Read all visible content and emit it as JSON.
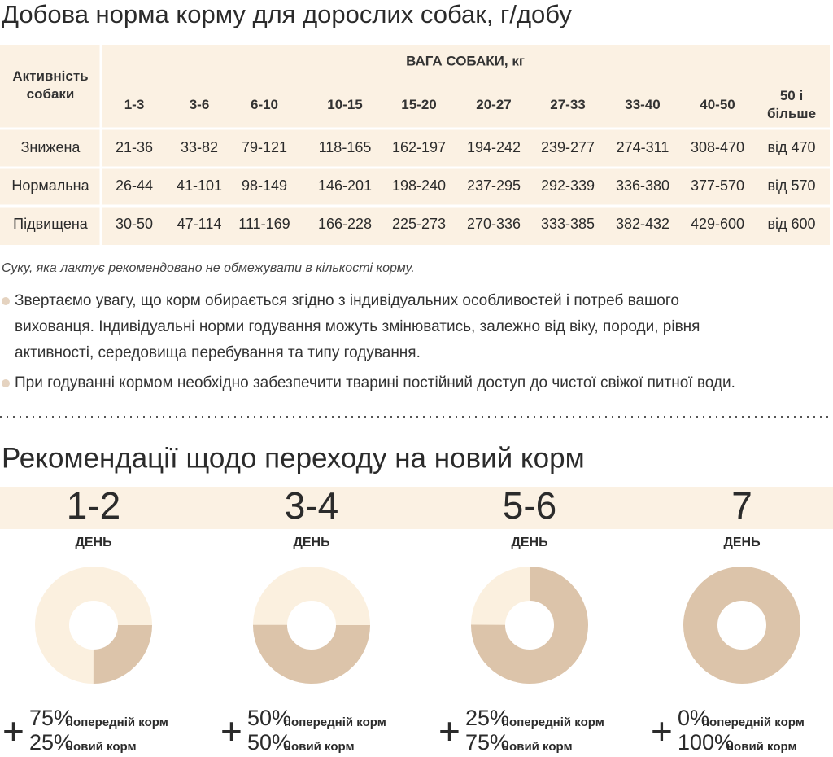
{
  "table": {
    "title": "Добова норма корму для дорослих собак, г/добу",
    "activity_header": [
      "Активність",
      "собаки"
    ],
    "weight_header": "ВАГА СОБАКИ, кг",
    "weights": [
      [
        "1-3"
      ],
      [
        "3-6"
      ],
      [
        "6-10"
      ],
      [
        "10-15"
      ],
      [
        "15-20"
      ],
      [
        "20-27"
      ],
      [
        "27-33"
      ],
      [
        "33-40"
      ],
      [
        "40-50"
      ],
      [
        "50 і",
        "більше"
      ]
    ],
    "rows": [
      {
        "label": "Знижена",
        "values": [
          "21-36",
          "33-82",
          "79-121",
          "118-165",
          "162-197",
          "194-242",
          "239-277",
          "274-311",
          "308-470",
          "від 470"
        ]
      },
      {
        "label": "Нормальна",
        "values": [
          "26-44",
          "41-101",
          "98-149",
          "146-201",
          "198-240",
          "237-295",
          "292-339",
          "336-380",
          "377-570",
          "від 570"
        ]
      },
      {
        "label": "Підвищена",
        "values": [
          "30-50",
          "47-114",
          "111-169",
          "166-228",
          "225-273",
          "270-336",
          "333-385",
          "382-432",
          "429-600",
          "від 600"
        ]
      }
    ]
  },
  "notes": {
    "note": "Суку, яка лактує рекомендовано не обмежувати в кількості корму.",
    "bullets": [
      [
        "Звертаємо увагу, що корм обирається згідно з індивідуальних особливостей і потреб вашого",
        "вихованця. Індивідуальні норми годування можуть змінюватись, залежно від віку, породи, рівня",
        "активності, середовища перебування та типу годування."
      ],
      [
        "При годуванні кормом необхідно забезпечити тварині постійний доступ до чистої свіжої питної води."
      ]
    ]
  },
  "transition": {
    "title": "Рекомендації щодо переходу на новий корм",
    "steps": [
      {
        "days": "1-2",
        "day_label": "ДЕНЬ",
        "old": 75,
        "old_label": "75%",
        "old_text": "попередній корм",
        "new": 25,
        "new_label": "25%",
        "new_text": "новий корм",
        "plus": "+"
      },
      {
        "days": "3-4",
        "day_label": "ДЕНЬ",
        "old": 50,
        "old_label": "50%",
        "old_text": "попередній корм",
        "new": 50,
        "new_label": "50%",
        "new_text": "новий корм",
        "plus": "+"
      },
      {
        "days": "5-6",
        "day_label": "ДЕНЬ",
        "old": 25,
        "old_label": "25%",
        "old_text": "попередній корм",
        "new": 75,
        "new_label": "75%",
        "new_text": "новий корм",
        "plus": "+"
      },
      {
        "days": "7",
        "day_label": "ДЕНЬ",
        "old": 0,
        "old_label": "0%",
        "old_text": "попередній корм",
        "new": 100,
        "new_label": "100%",
        "new_text": "новий корм",
        "plus": "+"
      }
    ],
    "old_color": "#fbf0df",
    "new_color": "#dcc4aa"
  }
}
